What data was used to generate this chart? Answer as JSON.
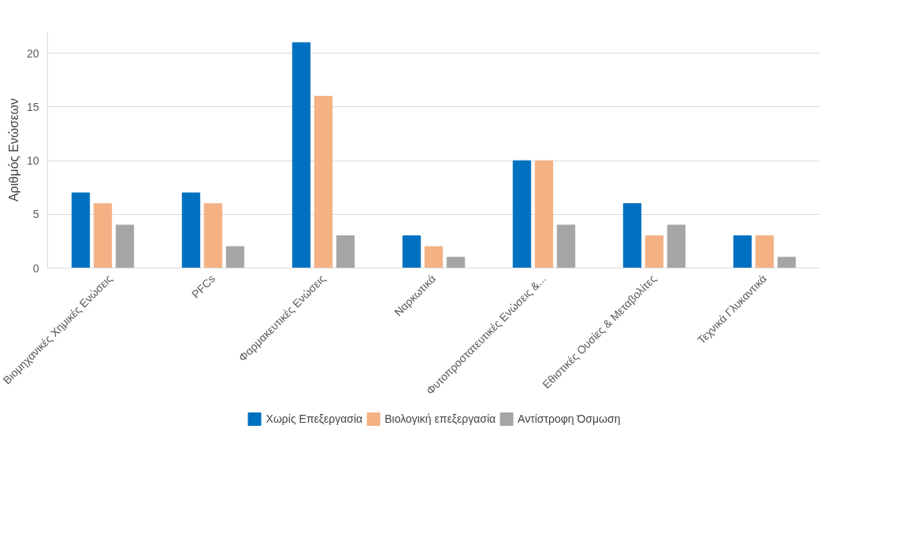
{
  "chart_data": {
    "type": "bar",
    "ylabel": "Αριθμός Ενώσεων",
    "categories": [
      "Βιομηχανικές Χημικές Ενώσεις",
      "PFCs",
      "Φαρμακευτικές Ενώσεις",
      "Ναρκωτικά",
      "Φυτοπροστατευτικές Ενώσεις &...",
      "Εθιστικές Ουσίες & Μεταβολίτες",
      "Τεχνικά Γλυκαντικά"
    ],
    "series": [
      {
        "name": "Χωρίς Επεξεργασία",
        "color": "#0070c0",
        "values": [
          7,
          7,
          21,
          3,
          10,
          6,
          3
        ]
      },
      {
        "name": "Βιολογική επεξεργασία",
        "color": "#f4b183",
        "values": [
          6,
          6,
          16,
          2,
          10,
          3,
          3
        ]
      },
      {
        "name": "Αντίστροφη Όσμωση",
        "color": "#a5a5a5",
        "values": [
          4,
          2,
          3,
          1,
          4,
          4,
          1
        ]
      }
    ],
    "ylim": [
      0,
      22
    ],
    "yticks": [
      0,
      5,
      10,
      15,
      20
    ],
    "grid": "y",
    "legend": "bottom"
  }
}
